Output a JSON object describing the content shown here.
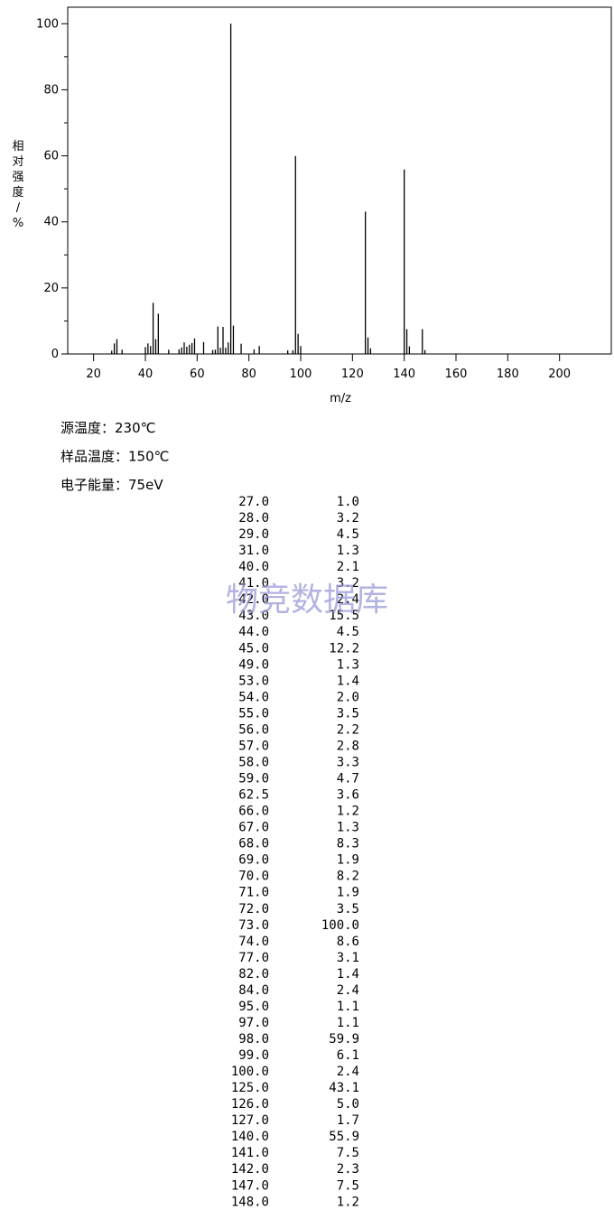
{
  "chart_data": {
    "type": "bar",
    "x_label": "m/z",
    "y_label": "相对强度/%",
    "x": [
      27,
      28,
      29,
      31,
      40,
      41,
      42,
      43,
      44,
      45,
      49,
      53,
      54,
      55,
      56,
      57,
      58,
      59,
      62.5,
      66,
      67,
      68,
      69,
      70,
      71,
      72,
      73,
      74,
      77,
      82,
      84,
      95,
      97,
      98,
      99,
      100,
      125,
      126,
      127,
      140,
      141,
      142,
      147,
      148
    ],
    "x_labels": [
      "27.0",
      "28.0",
      "29.0",
      "31.0",
      "40.0",
      "41.0",
      "42.0",
      "43.0",
      "44.0",
      "45.0",
      "49.0",
      "53.0",
      "54.0",
      "55.0",
      "56.0",
      "57.0",
      "58.0",
      "59.0",
      "62.5",
      "66.0",
      "67.0",
      "68.0",
      "69.0",
      "70.0",
      "71.0",
      "72.0",
      "73.0",
      "74.0",
      "77.0",
      "82.0",
      "84.0",
      "95.0",
      "97.0",
      "98.0",
      "99.0",
      "100.0",
      "125.0",
      "126.0",
      "127.0",
      "140.0",
      "141.0",
      "142.0",
      "147.0",
      "148.0"
    ],
    "values": [
      1.0,
      3.2,
      4.5,
      1.3,
      2.1,
      3.2,
      2.4,
      15.5,
      4.5,
      12.2,
      1.3,
      1.4,
      2.0,
      3.5,
      2.2,
      2.8,
      3.3,
      4.7,
      3.6,
      1.2,
      1.3,
      8.3,
      1.9,
      8.2,
      1.9,
      3.5,
      100.0,
      8.6,
      3.1,
      1.4,
      2.4,
      1.1,
      1.1,
      59.9,
      6.1,
      2.4,
      43.1,
      5.0,
      1.7,
      55.9,
      7.5,
      2.3,
      7.5,
      1.2
    ],
    "value_labels": [
      "1.0",
      "3.2",
      "4.5",
      "1.3",
      "2.1",
      "3.2",
      "2.4",
      "15.5",
      "4.5",
      "12.2",
      "1.3",
      "1.4",
      "2.0",
      "3.5",
      "2.2",
      "2.8",
      "3.3",
      "4.7",
      "3.6",
      "1.2",
      "1.3",
      "8.3",
      "1.9",
      "8.2",
      "1.9",
      "3.5",
      "100.0",
      "8.6",
      "3.1",
      "1.4",
      "2.4",
      "1.1",
      "1.1",
      "59.9",
      "6.1",
      "2.4",
      "43.1",
      "5.0",
      "1.7",
      "55.9",
      "7.5",
      "2.3",
      "7.5",
      "1.2"
    ],
    "color": "#000000",
    "xlim": [
      10,
      220
    ],
    "xticks": [
      20,
      40,
      60,
      80,
      100,
      120,
      140,
      160,
      180,
      200
    ],
    "ylim": [
      0,
      105
    ],
    "yticks": [
      0,
      20,
      40,
      60,
      80,
      100
    ],
    "yminorticks": [
      10,
      30,
      50,
      70,
      90
    ]
  },
  "notes": [
    "源温度：230℃",
    "样品温度：150℃",
    "电子能量：75eV"
  ],
  "watermark": "物竞数据库"
}
